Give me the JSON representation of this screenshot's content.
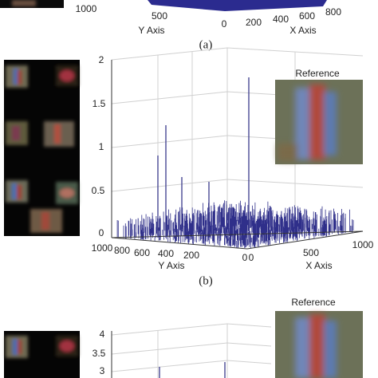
{
  "panel_a": {
    "corner_tick": "1000",
    "y_axis_ticks": [
      "500",
      "0"
    ],
    "y_axis_label": "Y Axis",
    "x_axis_ticks": [
      "200",
      "400",
      "600",
      "800"
    ],
    "x_axis_label": "X Axis",
    "caption": "(a)"
  },
  "panel_b": {
    "z_ticks": [
      "2",
      "1.5",
      "1",
      "0.5",
      "0"
    ],
    "y_axis_ticks": [
      "1000",
      "800",
      "600",
      "400",
      "200",
      "0"
    ],
    "y_axis_label": "Y Axis",
    "x_axis_ticks": [
      "0",
      "500",
      "1000"
    ],
    "x_axis_label": "X Axis",
    "reference_label": "Reference",
    "caption": "(b)"
  },
  "panel_c": {
    "reference_label": "Reference",
    "z_ticks": [
      "4",
      "3.5",
      "3"
    ]
  }
}
